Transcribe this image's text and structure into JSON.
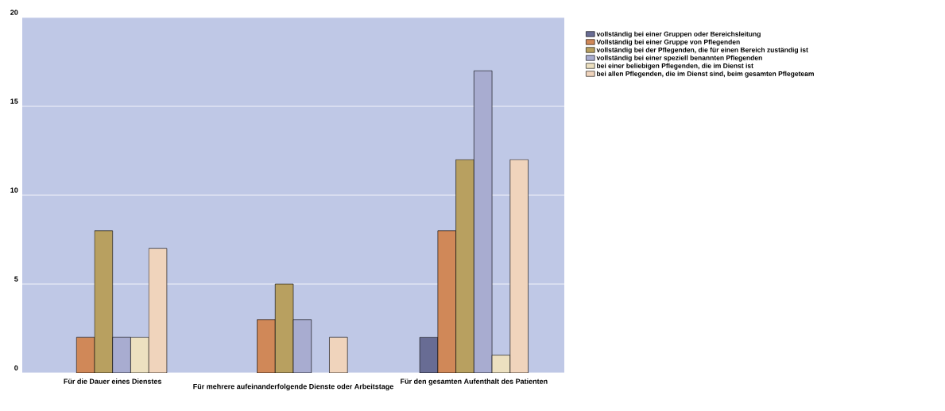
{
  "chart_data": {
    "type": "bar",
    "categories": [
      "Für die Dauer eines Dienstes",
      "Für mehrere aufeinanderfolgende Dienste oder Arbeitstage",
      "Für den gesamten Aufenthalt des Patienten"
    ],
    "series": [
      {
        "name": "vollständig bei einer Gruppen oder Bereichsleitung",
        "color": "#686c94",
        "values": [
          null,
          null,
          2
        ]
      },
      {
        "name": "Vollständig bei einer Gruppe von Pflegenden",
        "color": "#d08858",
        "values": [
          2,
          3,
          8
        ]
      },
      {
        "name": "vollständig bei der Pflegenden, die für einen Bereich zuständig ist",
        "color": "#b8a060",
        "values": [
          8,
          5,
          12
        ]
      },
      {
        "name": "vollständig bei einer speziell benannten Pflegenden",
        "color": "#a8acd0",
        "values": [
          2,
          3,
          17
        ]
      },
      {
        "name": "bei einer beliebigen Pflegenden, die im Dienst ist",
        "color": "#ece0c0",
        "values": [
          2,
          null,
          1
        ]
      },
      {
        "name": "bei allen Pflegenden, die im Dienst sind, beim gesamten Pflegeteam",
        "color": "#f0d4bc",
        "values": [
          7,
          2,
          12
        ]
      }
    ],
    "ylim": [
      0,
      20
    ],
    "yticks": [
      0,
      5,
      10,
      15,
      20
    ],
    "grid": "y",
    "legend": "top right"
  }
}
